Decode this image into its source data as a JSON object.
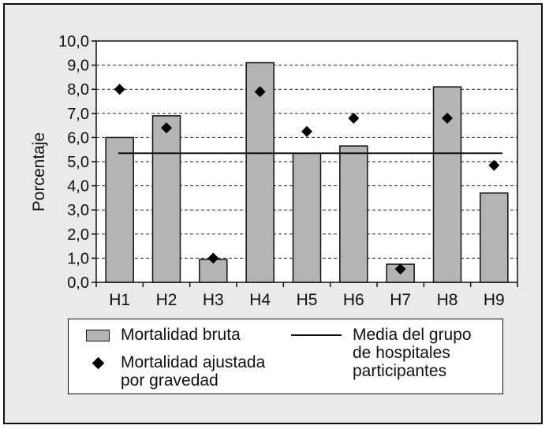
{
  "chart_data": {
    "type": "bar",
    "title": "",
    "xlabel": "",
    "ylabel": "Porcentaje",
    "ylim": [
      0,
      10
    ],
    "yticks": [
      "0,0",
      "1,0",
      "2,0",
      "3,0",
      "4,0",
      "5,0",
      "6,0",
      "7,0",
      "8,0",
      "9,0",
      "10,0"
    ],
    "categories": [
      "H1",
      "H2",
      "H3",
      "H4",
      "H5",
      "H6",
      "H7",
      "H8",
      "H9"
    ],
    "grid": "horizontal dashed",
    "series": [
      {
        "name": "Mortalidad bruta",
        "kind": "bar",
        "color": "#b4b4b4",
        "values": [
          6.0,
          6.9,
          0.95,
          9.1,
          5.35,
          5.65,
          0.75,
          8.1,
          3.7
        ]
      },
      {
        "name": "Mortalidad ajustada por gravedad",
        "kind": "marker",
        "marker": "diamond",
        "color": "#000000",
        "values": [
          8.0,
          6.4,
          1.0,
          7.9,
          6.25,
          6.8,
          0.55,
          6.8,
          4.85
        ]
      },
      {
        "name": "Media del grupo de hospitales participantes",
        "kind": "line",
        "color": "#000000",
        "value": 5.35
      }
    ]
  },
  "legend": {
    "bar_label": "Mortalidad bruta",
    "diamond_label": "Mortalidad ajustada\npor gravedad",
    "line_label": "Media del grupo\nde hospitales\nparticipantes"
  }
}
